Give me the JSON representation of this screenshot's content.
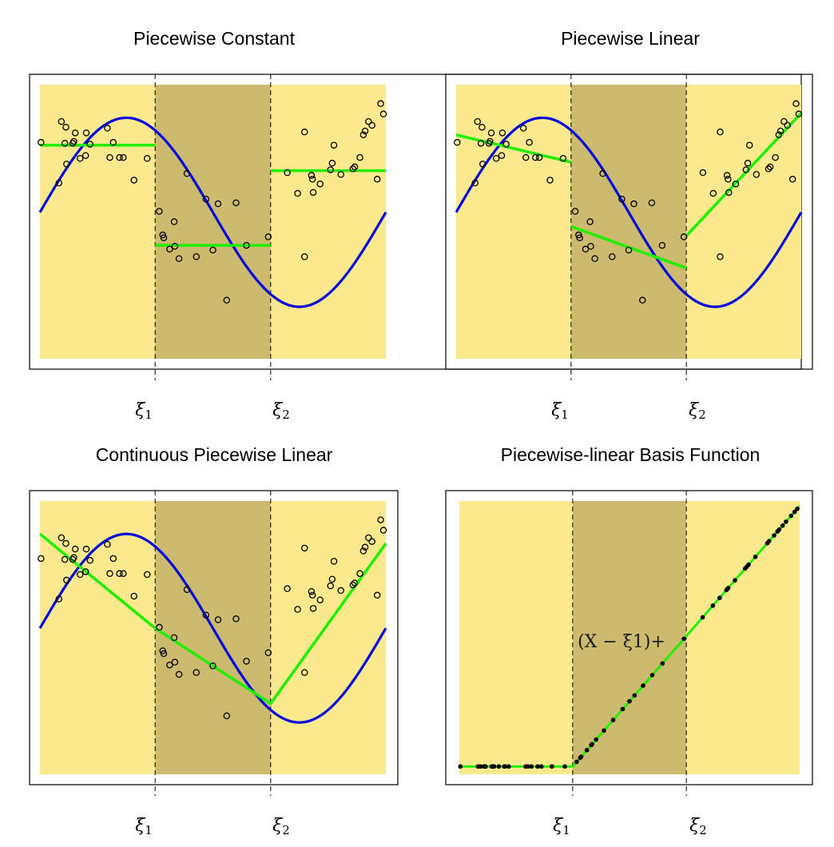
{
  "colors": {
    "outer_region": "#FCE98E",
    "middle_region": "#CCBB6E",
    "true_function": "#0000DD",
    "fit": "#22EE00",
    "points": "#000000",
    "frame": "#000000"
  },
  "knot_labels": [
    "ξ1",
    "ξ2"
  ],
  "chart_data": [
    {
      "type": "scatter",
      "title": "Piecewise Constant",
      "knots": [
        0.333,
        0.667
      ],
      "xlim": [
        0.0,
        1.0
      ],
      "ylim": [
        -1.55,
        1.35
      ],
      "grid": false,
      "scatter": [
        [
          0.003,
          0.74
        ],
        [
          0.055,
          0.31
        ],
        [
          0.062,
          0.96
        ],
        [
          0.072,
          0.73
        ],
        [
          0.075,
          0.9
        ],
        [
          0.077,
          0.51
        ],
        [
          0.095,
          0.73
        ],
        [
          0.098,
          0.75
        ],
        [
          0.102,
          0.84
        ],
        [
          0.116,
          0.57
        ],
        [
          0.132,
          0.6
        ],
        [
          0.134,
          0.84
        ],
        [
          0.145,
          0.72
        ],
        [
          0.195,
          0.89
        ],
        [
          0.202,
          0.58
        ],
        [
          0.212,
          0.74
        ],
        [
          0.23,
          0.58
        ],
        [
          0.241,
          0.58
        ],
        [
          0.272,
          0.34
        ],
        [
          0.31,
          0.57
        ],
        [
          0.345,
          0.01
        ],
        [
          0.355,
          -0.24
        ],
        [
          0.358,
          -0.27
        ],
        [
          0.375,
          -0.39
        ],
        [
          0.388,
          -0.1
        ],
        [
          0.39,
          -0.36
        ],
        [
          0.402,
          -0.49
        ],
        [
          0.425,
          0.41
        ],
        [
          0.452,
          -0.47
        ],
        [
          0.48,
          0.14
        ],
        [
          0.5,
          -0.4
        ],
        [
          0.515,
          0.09
        ],
        [
          0.54,
          -0.93
        ],
        [
          0.567,
          0.1
        ],
        [
          0.597,
          -0.35
        ],
        [
          0.66,
          -0.26
        ],
        [
          0.715,
          0.42
        ],
        [
          0.745,
          0.2
        ],
        [
          0.765,
          -0.47
        ],
        [
          0.765,
          0.85
        ],
        [
          0.785,
          0.39
        ],
        [
          0.788,
          0.35
        ],
        [
          0.79,
          0.21
        ],
        [
          0.81,
          0.3
        ],
        [
          0.84,
          0.45
        ],
        [
          0.845,
          0.52
        ],
        [
          0.85,
          0.71
        ],
        [
          0.87,
          0.4
        ],
        [
          0.905,
          0.46
        ],
        [
          0.91,
          0.48
        ],
        [
          0.925,
          0.58
        ],
        [
          0.935,
          0.82
        ],
        [
          0.94,
          0.86
        ],
        [
          0.95,
          0.96
        ],
        [
          0.96,
          0.92
        ],
        [
          0.975,
          0.35
        ],
        [
          0.985,
          1.15
        ],
        [
          0.993,
          1.04
        ]
      ],
      "true_function": "sin(2*pi*x)",
      "fit_segments": [
        [
          [
            0.0,
            0.71
          ],
          [
            0.333,
            0.71
          ]
        ],
        [
          [
            0.333,
            -0.35
          ],
          [
            0.667,
            -0.35
          ]
        ],
        [
          [
            0.667,
            0.44
          ],
          [
            1.0,
            0.44
          ]
        ]
      ]
    },
    {
      "type": "scatter",
      "title": "Piecewise Linear",
      "knots": [
        0.333,
        0.667
      ],
      "xlim": [
        0.0,
        1.0
      ],
      "ylim": [
        -1.55,
        1.35
      ],
      "grid": false,
      "scatter": "same-as-panel-1",
      "true_function": "sin(2*pi*x)",
      "fit_segments": [
        [
          [
            0.0,
            0.82
          ],
          [
            0.333,
            0.53
          ]
        ],
        [
          [
            0.333,
            -0.15
          ],
          [
            0.667,
            -0.59
          ]
        ],
        [
          [
            0.667,
            -0.25
          ],
          [
            1.0,
            1.05
          ]
        ]
      ]
    },
    {
      "type": "scatter",
      "title": "Continuous Piecewise Linear",
      "knots": [
        0.333,
        0.667
      ],
      "xlim": [
        0.0,
        1.0
      ],
      "ylim": [
        -1.55,
        1.35
      ],
      "grid": false,
      "scatter": "same-as-panel-1",
      "true_function": "sin(2*pi*x)",
      "fit_segments": [
        [
          [
            0.0,
            1.0
          ],
          [
            0.333,
            0.0
          ],
          [
            0.667,
            -0.8
          ],
          [
            1.0,
            0.9
          ]
        ]
      ]
    },
    {
      "type": "line",
      "title": "Piecewise-linear Basis Function",
      "knots": [
        0.333,
        0.667
      ],
      "xlim": [
        0.0,
        1.0
      ],
      "ylim": [
        -0.02,
        0.68
      ],
      "grid": false,
      "annotation": "(X − ξ1)+",
      "basis_line": [
        [
          0.0,
          0.0
        ],
        [
          0.333,
          0.0
        ],
        [
          1.0,
          0.667
        ]
      ],
      "basis_points_x": [
        0.003,
        0.055,
        0.062,
        0.072,
        0.075,
        0.077,
        0.095,
        0.098,
        0.102,
        0.116,
        0.132,
        0.134,
        0.145,
        0.195,
        0.202,
        0.212,
        0.23,
        0.241,
        0.272,
        0.31,
        0.345,
        0.355,
        0.358,
        0.375,
        0.388,
        0.39,
        0.402,
        0.425,
        0.452,
        0.48,
        0.5,
        0.515,
        0.54,
        0.567,
        0.597,
        0.66,
        0.715,
        0.745,
        0.765,
        0.765,
        0.785,
        0.788,
        0.79,
        0.81,
        0.84,
        0.845,
        0.85,
        0.87,
        0.905,
        0.91,
        0.925,
        0.935,
        0.94,
        0.95,
        0.96,
        0.975,
        0.985,
        0.993
      ]
    }
  ]
}
